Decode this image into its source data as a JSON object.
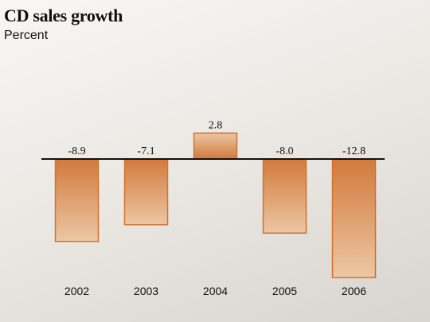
{
  "chart_data": {
    "type": "bar",
    "title": "CD sales growth",
    "subtitle": "Percent",
    "categories": [
      "2002",
      "2003",
      "2004",
      "2005",
      "2006"
    ],
    "values": [
      -8.9,
      -7.1,
      2.8,
      -8.0,
      -12.8
    ],
    "value_labels": [
      "-8.9",
      "-7.1",
      "2.8",
      "-8.0",
      "-12.8"
    ],
    "ylim": [
      -14,
      4
    ],
    "grid": false,
    "colors": {
      "bar_stroke": "#d4722e",
      "bar_dark": "#d27a3c",
      "bar_light": "#ecc7a4",
      "axis": "#111111"
    }
  }
}
